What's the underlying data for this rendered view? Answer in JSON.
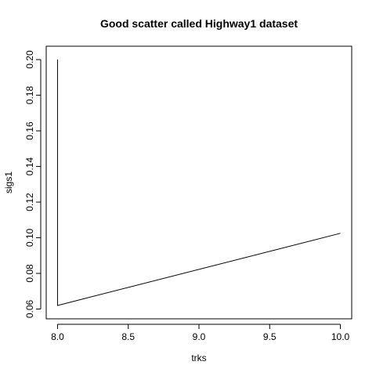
{
  "chart_data": {
    "type": "line",
    "title": "Good scatter called Highway1 dataset",
    "xlabel": "trks",
    "ylabel": "sigs1",
    "xlim": [
      7.92,
      10.08
    ],
    "ylim": [
      0.0545,
      0.2075
    ],
    "xticks": [
      8.0,
      8.5,
      9.0,
      9.5,
      10.0
    ],
    "xtick_labels": [
      "8.0",
      "8.5",
      "9.0",
      "9.5",
      "10.0"
    ],
    "yticks": [
      0.06,
      0.08,
      0.1,
      0.12,
      0.14,
      0.16,
      0.18,
      0.2
    ],
    "ytick_labels": [
      "0.06",
      "0.08",
      "0.10",
      "0.12",
      "0.14",
      "0.16",
      "0.18",
      "0.20"
    ],
    "series": [
      {
        "x": [
          8.0,
          8.0,
          10.0
        ],
        "y": [
          0.2,
          0.062,
          0.1025
        ]
      }
    ],
    "grid": false,
    "legend": "none",
    "line_color": "#000000"
  }
}
